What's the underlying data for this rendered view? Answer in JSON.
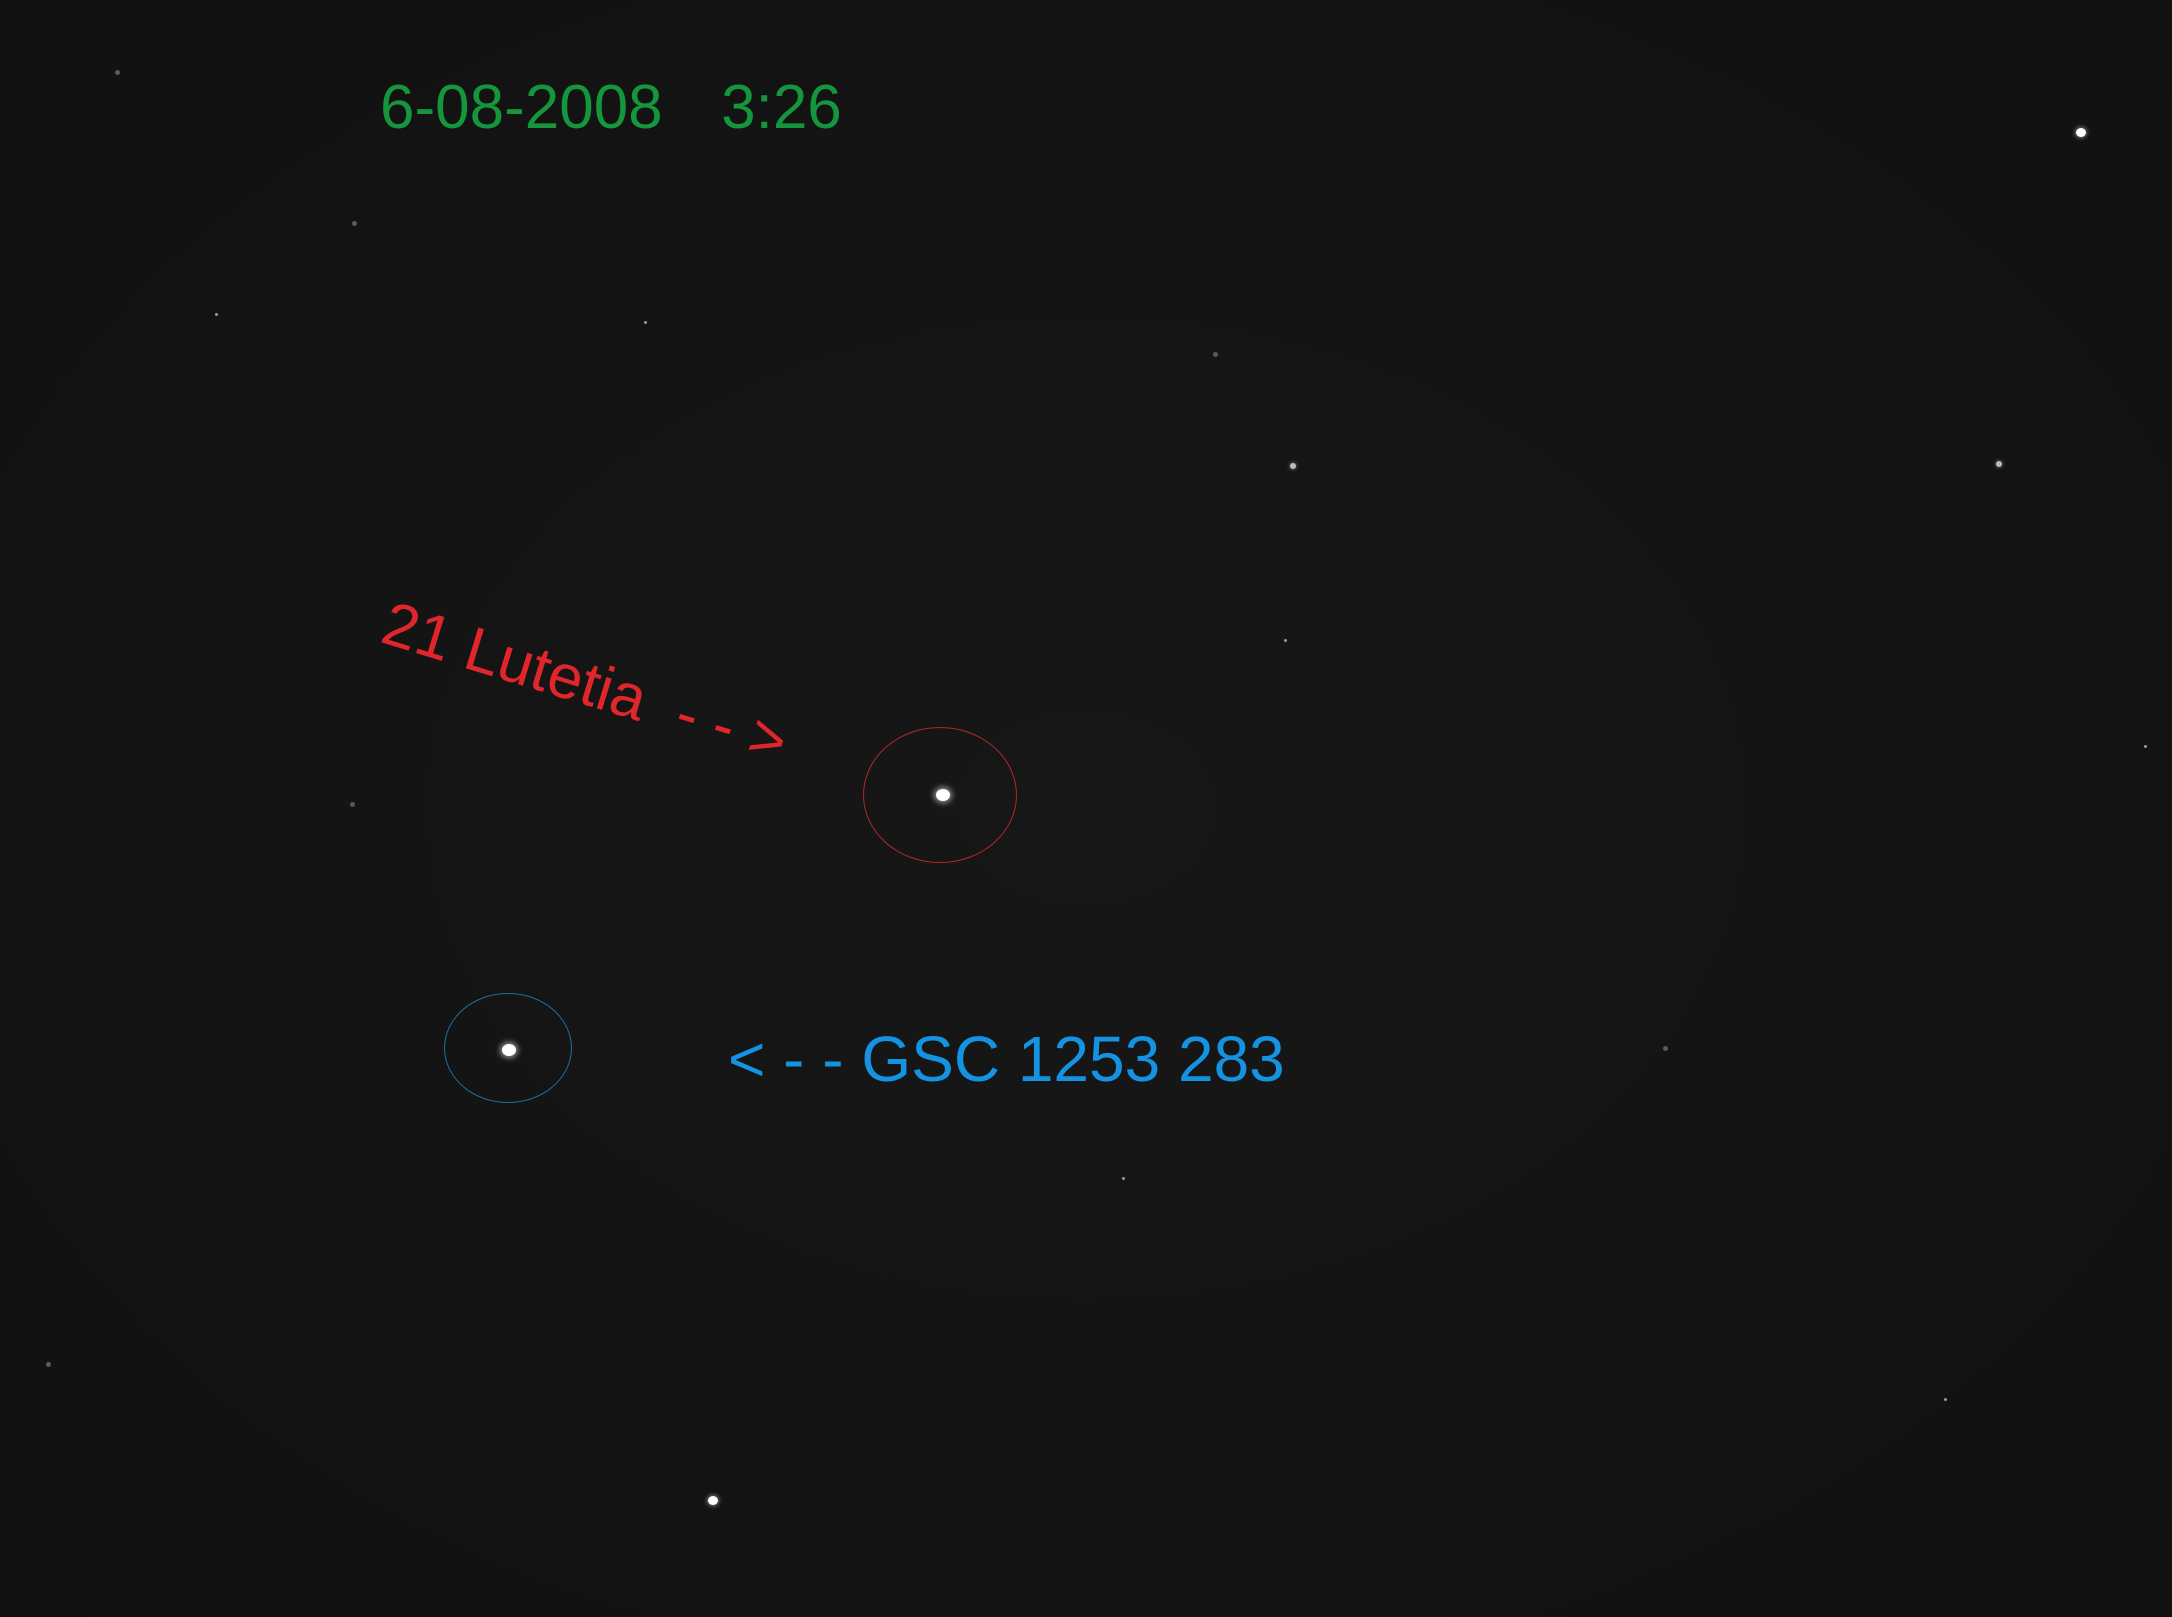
{
  "image": {
    "timestamp_label": "6-08-2008  3:26",
    "target_label": "21 Lutetia  - - >",
    "reference_label": "< - - GSC 1253 283",
    "colors": {
      "background": "#141414",
      "timestamp": "#14963c",
      "target": "#e1262b",
      "reference": "#1493e3"
    }
  }
}
